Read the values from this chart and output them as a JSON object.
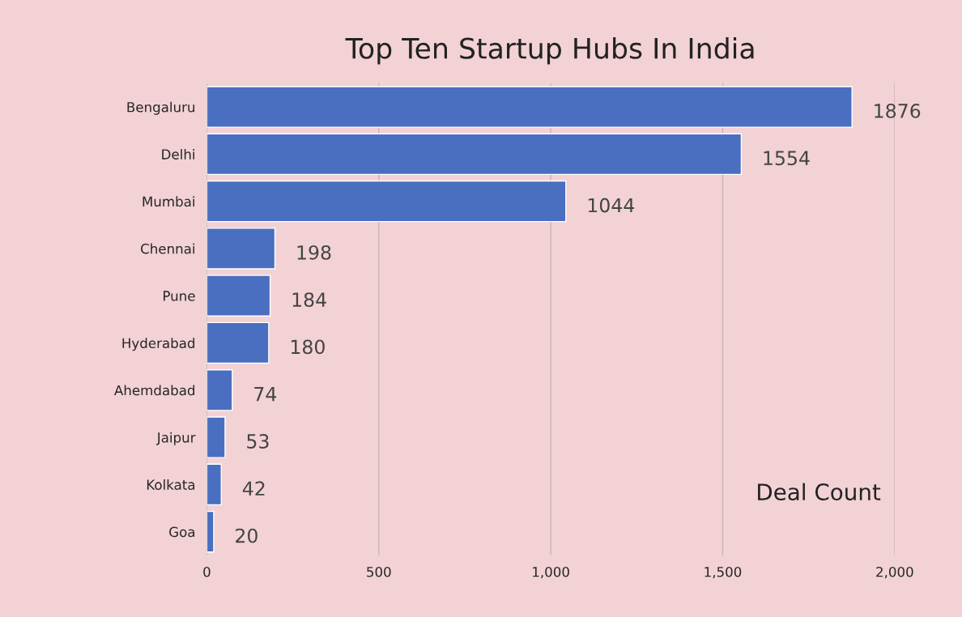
{
  "chart_data": {
    "type": "bar",
    "orientation": "horizontal",
    "title": "Top Ten Startup Hubs In India",
    "categories": [
      "Bengaluru",
      "Delhi",
      "Mumbai",
      "Chennai",
      "Pune",
      "Hyderabad",
      "Ahemdabad",
      "Jaipur",
      "Kolkata",
      "Goa"
    ],
    "values": [
      1876,
      1554,
      1044,
      198,
      184,
      180,
      74,
      53,
      42,
      20
    ],
    "color": "#4a6fc0",
    "xlim": [
      0,
      2000
    ],
    "xticks": [
      0,
      500,
      {
        "value": 1000,
        "label": "1,000"
      },
      {
        "value": 1500,
        "label": "1,500"
      },
      {
        "value": 2000,
        "label": "2,000"
      }
    ],
    "grid": "x",
    "data_labels": true,
    "annotations": [
      "Deal Count"
    ]
  }
}
